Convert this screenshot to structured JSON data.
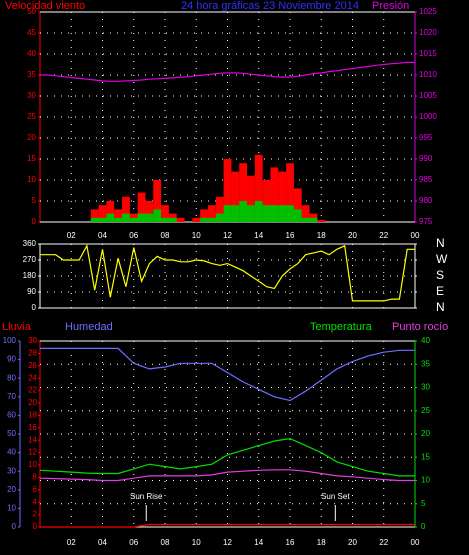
{
  "chart_data": [
    {
      "type": "bar",
      "title": "24 hora gráficas  23 Noviembre 2014",
      "grid": true,
      "axis_colors": {
        "y": "#ff0000",
        "y2": "#e000e0"
      },
      "xlim": [
        0,
        24
      ],
      "xticks": [
        {
          "value": 2,
          "label": "02"
        },
        {
          "value": 4,
          "label": "04"
        },
        {
          "value": 6,
          "label": "06"
        },
        {
          "value": 8,
          "label": "08"
        },
        10,
        12,
        14,
        16,
        18,
        20,
        22,
        {
          "value": 24,
          "label": "00"
        }
      ],
      "ylim": [
        0,
        50
      ],
      "yticks": [
        0,
        5,
        10,
        15,
        20,
        25,
        30,
        35,
        40,
        45,
        50
      ],
      "y2lim": [
        975,
        1025
      ],
      "y2ticks": [
        975,
        980,
        985,
        990,
        995,
        1000,
        1005,
        1010,
        1015,
        1020,
        1025
      ],
      "x": [
        0,
        0.5,
        1,
        1.5,
        2,
        2.5,
        3,
        3.5,
        4,
        4.5,
        5,
        5.5,
        6,
        6.5,
        7,
        7.5,
        8,
        8.5,
        9,
        9.5,
        10,
        10.5,
        11,
        11.5,
        12,
        12.5,
        13,
        13.5,
        14,
        14.5,
        15,
        15.5,
        16,
        16.5,
        17,
        17.5,
        18,
        18.5,
        19,
        19.5,
        20,
        20.5,
        21,
        21.5,
        22,
        22.5,
        23,
        23.5,
        24
      ],
      "series": [
        {
          "name": "Velocidad viento",
          "color": "#ff0000",
          "type": "bar",
          "values": [
            0,
            0,
            0,
            0,
            0,
            0,
            0,
            3,
            4,
            5,
            3,
            6,
            2,
            7,
            5,
            10,
            4,
            2,
            1,
            0,
            1,
            3,
            4,
            6,
            15,
            12,
            14,
            11,
            16,
            10,
            13,
            12,
            14,
            8,
            4,
            2,
            0.5,
            0,
            0,
            0,
            0,
            0,
            0,
            0,
            0,
            0,
            0,
            0,
            0
          ]
        },
        {
          "color": "#00c000",
          "type": "bar",
          "values": [
            0,
            0,
            0,
            0,
            0,
            0,
            0,
            1,
            1,
            2,
            1,
            2,
            1,
            2,
            2,
            3,
            1,
            1,
            0,
            0,
            0,
            1,
            1,
            2,
            4,
            4,
            5,
            4,
            5,
            4,
            4,
            4,
            4,
            3,
            1,
            1,
            0,
            0,
            0,
            0,
            0,
            0,
            0,
            0,
            0,
            0,
            0,
            0,
            0
          ]
        },
        {
          "name": "Presión",
          "color": "#e000e0",
          "type": "line",
          "axis": "y2",
          "values": [
            1010,
            1010,
            1009.8,
            1009.6,
            1009.4,
            1009.2,
            1009,
            1008.8,
            1008.6,
            1008.5,
            1008.5,
            1008.6,
            1008.7,
            1008.8,
            1009,
            1009.1,
            1009.2,
            1009.3,
            1009.5,
            1009.6,
            1009.8,
            1010,
            1010.2,
            1010.4,
            1010.5,
            1010.5,
            1010.4,
            1010.2,
            1010,
            1009.8,
            1009.6,
            1009.5,
            1009.5,
            1009.7,
            1010,
            1010.3,
            1010.5,
            1010.8,
            1011,
            1011.3,
            1011.5,
            1011.8,
            1012,
            1012.3,
            1012.5,
            1012.7,
            1012.8,
            1013,
            1013
          ]
        }
      ]
    },
    {
      "type": "line",
      "grid": true,
      "axis_colors": {
        "y": "#ffffff",
        "y2": "#ffffff"
      },
      "xlim": [
        0,
        24
      ],
      "xticks": [
        2,
        4,
        6,
        8,
        10,
        12,
        14,
        16,
        18,
        20,
        22,
        24
      ],
      "ylim": [
        0,
        360
      ],
      "yticks": [
        0,
        90,
        180,
        270,
        360
      ],
      "y2lim": [
        0,
        360
      ],
      "y2ticks": [
        {
          "value": 0,
          "label": "N"
        },
        {
          "value": 90,
          "label": "E"
        },
        {
          "value": 180,
          "label": "S"
        },
        {
          "value": 270,
          "label": "W"
        },
        {
          "value": 360,
          "label": "N"
        }
      ],
      "x": [
        0,
        0.5,
        1,
        1.5,
        2,
        2.5,
        3,
        3.5,
        4,
        4.5,
        5,
        5.5,
        6,
        6.5,
        7,
        7.5,
        8,
        8.5,
        9,
        9.5,
        10,
        10.5,
        11,
        11.5,
        12,
        12.5,
        13,
        13.5,
        14,
        14.5,
        15,
        15.5,
        16,
        16.5,
        17,
        17.5,
        18,
        18.5,
        19,
        19.5,
        20,
        20.5,
        21,
        21.5,
        22,
        22.5,
        23,
        23.5,
        24
      ],
      "series": [
        {
          "color": "#ffff00",
          "values": [
            300,
            300,
            300,
            270,
            270,
            270,
            350,
            100,
            330,
            60,
            280,
            120,
            340,
            150,
            250,
            290,
            270,
            270,
            260,
            260,
            270,
            265,
            250,
            240,
            250,
            230,
            210,
            180,
            150,
            120,
            110,
            180,
            220,
            250,
            300,
            310,
            320,
            300,
            330,
            350,
            40,
            40,
            40,
            40,
            40,
            50,
            50,
            330,
            330
          ]
        }
      ]
    },
    {
      "type": "line",
      "grid": true,
      "axis_colors": {
        "y": "#ff0000",
        "y2": "#00e000",
        "y3": "#6f6fff"
      },
      "xlim": [
        0,
        24
      ],
      "xticks": [
        {
          "value": 2,
          "label": "02"
        },
        {
          "value": 4,
          "label": "04"
        },
        {
          "value": 6,
          "label": "06"
        },
        {
          "value": 8,
          "label": "08"
        },
        10,
        12,
        14,
        16,
        18,
        20,
        22,
        {
          "value": 24,
          "label": "00"
        }
      ],
      "ylim": [
        0,
        30
      ],
      "yticks": [
        0,
        2,
        4,
        6,
        8,
        10,
        12,
        14,
        16,
        18,
        20,
        22,
        24,
        26,
        28,
        30
      ],
      "y2lim": [
        0,
        40
      ],
      "y2ticks": [
        0,
        5,
        10,
        15,
        20,
        25,
        30,
        35,
        40
      ],
      "y3lim": [
        0,
        100
      ],
      "y3ticks": [
        0,
        10,
        20,
        30,
        40,
        50,
        60,
        70,
        80,
        90,
        100
      ],
      "annotations": [
        {
          "text": "Sun Rise",
          "x": 6.8
        },
        {
          "text": "Sun Set",
          "x": 18.9
        }
      ],
      "x": [
        0,
        1,
        2,
        3,
        4,
        5,
        6,
        7,
        8,
        9,
        10,
        11,
        12,
        13,
        14,
        15,
        16,
        17,
        18,
        19,
        20,
        21,
        22,
        23,
        24
      ],
      "series": [
        {
          "name": "Lluvia",
          "color": "#ff0000",
          "axis": "y",
          "values": [
            0,
            0,
            0,
            0,
            0,
            0,
            0,
            0.4,
            0.4,
            0.4,
            0.4,
            0.4,
            0.4,
            0.4,
            0.4,
            0.4,
            0.4,
            0.4,
            0.4,
            0.4,
            0.4,
            0.4,
            0.4,
            0.4,
            0.4
          ]
        },
        {
          "name": "Humedad",
          "color": "#6f6fff",
          "axis": "y3",
          "values": [
            96,
            96,
            96,
            96,
            96,
            96,
            88,
            85,
            86,
            88,
            88,
            88,
            83,
            78,
            74,
            70,
            68,
            73,
            79,
            85,
            89,
            92,
            94,
            95,
            95
          ]
        },
        {
          "name": "Temperatura",
          "color": "#00e000",
          "axis": "y2",
          "values": [
            12.2,
            12,
            11.8,
            11.6,
            11.5,
            11.5,
            12.5,
            13.5,
            13,
            12.5,
            13,
            13.5,
            15.5,
            16.5,
            17.5,
            18.5,
            19,
            17.5,
            16,
            14,
            13,
            12,
            11.5,
            11,
            11
          ]
        },
        {
          "name": "Punto rocío",
          "color": "#e040e0",
          "axis": "y2",
          "values": [
            10.5,
            10.4,
            10.3,
            10.2,
            10,
            10,
            10.5,
            11,
            11,
            11,
            11,
            11.2,
            11.8,
            12,
            12.2,
            12.3,
            12.3,
            12,
            11.5,
            11,
            10.8,
            10.5,
            10.2,
            10,
            10
          ]
        }
      ]
    }
  ]
}
